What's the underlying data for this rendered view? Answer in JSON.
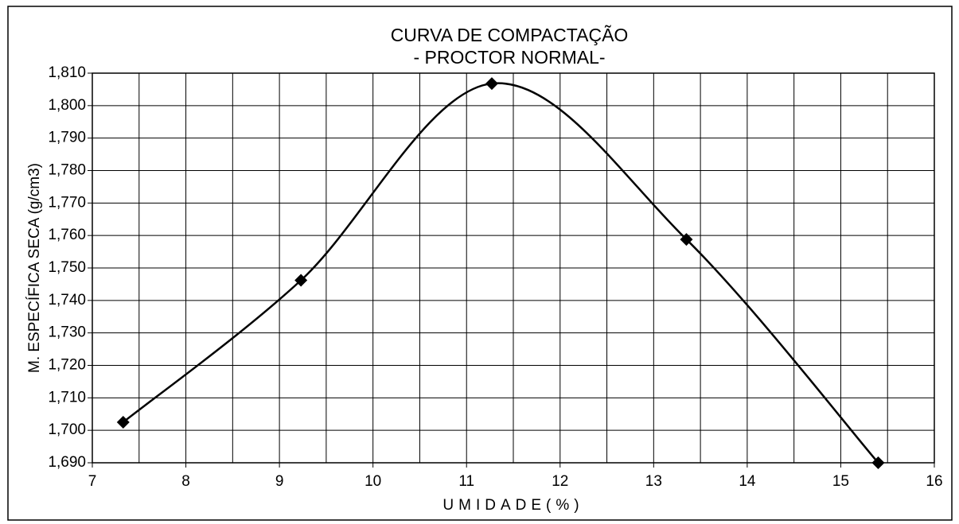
{
  "chart_data": {
    "type": "line",
    "title": [
      "CURVA DE COMPACTAÇÃO",
      "- PROCTOR NORMAL-"
    ],
    "x_label": "UMIDADE(%)",
    "y_label": "M. ESPECÍFICA SECA (g/cm3)",
    "series": [
      {
        "color": "#000000",
        "smooth": true,
        "marker": "diamond",
        "x": [
          7.33,
          9.23,
          11.27,
          13.35,
          15.4
        ],
        "values": [
          1.7025,
          1.7462,
          1.8068,
          1.7588,
          1.69
        ]
      }
    ],
    "xlim": [
      7,
      16
    ],
    "xticks": [
      7,
      8,
      9,
      10,
      11,
      12,
      13,
      14,
      15,
      16
    ],
    "x_minor_ticks": [
      7.5,
      8.5,
      9.5,
      10.5,
      11.5,
      12.5,
      13.5,
      14.5,
      15.5
    ],
    "ylim": [
      1.69,
      1.81
    ],
    "yticks": [
      {
        "value": 1.69,
        "label": "1,690"
      },
      {
        "value": 1.7,
        "label": "1,700"
      },
      {
        "value": 1.71,
        "label": "1,710"
      },
      {
        "value": 1.72,
        "label": "1,720"
      },
      {
        "value": 1.73,
        "label": "1,730"
      },
      {
        "value": 1.74,
        "label": "1,740"
      },
      {
        "value": 1.75,
        "label": "1,750"
      },
      {
        "value": 1.76,
        "label": "1,760"
      },
      {
        "value": 1.77,
        "label": "1,770"
      },
      {
        "value": 1.78,
        "label": "1,780"
      },
      {
        "value": 1.79,
        "label": "1,790"
      },
      {
        "value": 1.8,
        "label": "1,800"
      },
      {
        "value": 1.81,
        "label": "1,810"
      }
    ],
    "grid": true
  }
}
